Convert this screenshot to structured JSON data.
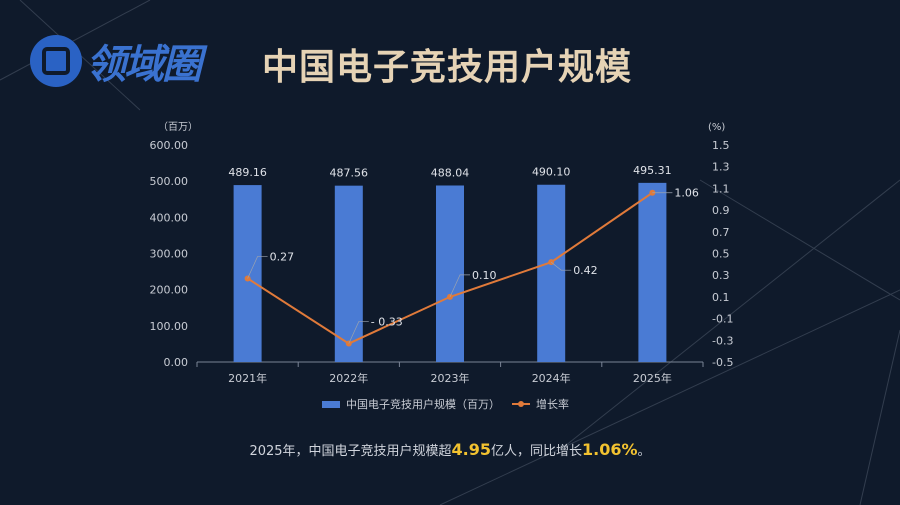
{
  "logo": {
    "text": "领域圈"
  },
  "title": "中国电子竞技用户规模",
  "chart_data": {
    "type": "bar+line",
    "title": "中国电子竞技用户规模",
    "categories": [
      "2021年",
      "2022年",
      "2023年",
      "2024年",
      "2025年"
    ],
    "series": [
      {
        "name": "中国电子竞技用户规模（百万）",
        "type": "bar",
        "axis": "left",
        "values": [
          489.16,
          487.56,
          488.04,
          490.1,
          495.31
        ],
        "labels": [
          "489.16",
          "487.56",
          "488.04",
          "490.10",
          "495.31"
        ]
      },
      {
        "name": "增长率",
        "type": "line",
        "axis": "right",
        "values": [
          0.27,
          -0.33,
          0.1,
          0.42,
          1.06
        ],
        "labels": [
          "0.27",
          "- 0.33",
          "0.10",
          "0.42",
          "1.06"
        ]
      }
    ],
    "left_axis": {
      "unit": "（百万）",
      "ylim": [
        0,
        600
      ],
      "ticks": [
        "0.00",
        "100.00",
        "200.00",
        "300.00",
        "400.00",
        "500.00",
        "600.00"
      ]
    },
    "right_axis": {
      "unit": "(%)",
      "ylim": [
        -0.5,
        1.5
      ],
      "ticks": [
        "-0.5",
        "-0.3",
        "-0.1",
        "0.1",
        "0.3",
        "0.5",
        "0.7",
        "0.9",
        "1.1",
        "1.3",
        "1.5"
      ]
    },
    "legend": "bottom",
    "colors": {
      "bar": "#4a7bd4",
      "line": "#e07a3a"
    }
  },
  "note": {
    "prefix": "2025年，中国电子竞技用户规模超",
    "v1": "4.95",
    "mid": "亿人，同比增长",
    "v2": "1.06%",
    "suffix": "。"
  }
}
